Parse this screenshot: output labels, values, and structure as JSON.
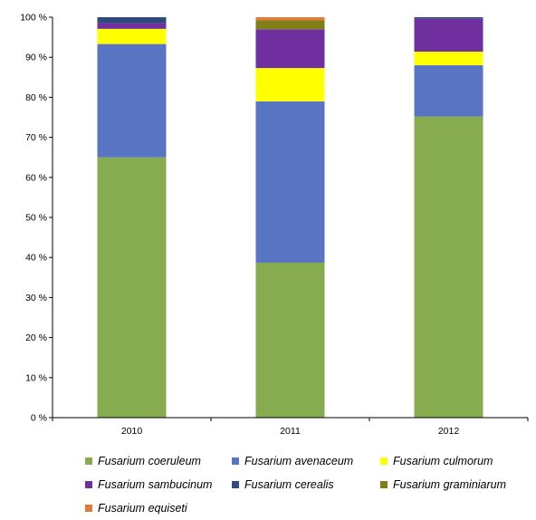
{
  "chart_data": {
    "type": "bar",
    "stacked": true,
    "percent": true,
    "categories": [
      "2010",
      "2011",
      "2012"
    ],
    "ylim": [
      0,
      100
    ],
    "yticks": [
      "0 %",
      "10 %",
      "20 %",
      "30 %",
      "40 %",
      "50 %",
      "60 %",
      "70 %",
      "80 %",
      "90 %",
      "100 %"
    ],
    "grid": false,
    "legend_position": "bottom",
    "series": [
      {
        "name": "Fusarium coeruleum",
        "color": "#86ac4f",
        "values": [
          65.0,
          38.7,
          75.2
        ]
      },
      {
        "name": "Fusarium avenaceum",
        "color": "#5874c2",
        "values": [
          28.3,
          40.3,
          12.8
        ]
      },
      {
        "name": "Fusarium culmorum",
        "color": "#ffff00",
        "values": [
          3.8,
          8.3,
          3.4
        ]
      },
      {
        "name": "Fusarium sambucinum",
        "color": "#7030a0",
        "values": [
          1.4,
          9.7,
          8.2
        ]
      },
      {
        "name": "Fusarium cerealis",
        "color": "#2e4a7e",
        "values": [
          1.5,
          0.0,
          0.4
        ]
      },
      {
        "name": "Fusarium graminiarum",
        "color": "#7f7f17",
        "values": [
          0.0,
          2.2,
          0.0
        ]
      },
      {
        "name": "Fusarium equiseti",
        "color": "#e07b39",
        "values": [
          0.0,
          0.8,
          0.0
        ]
      }
    ]
  }
}
